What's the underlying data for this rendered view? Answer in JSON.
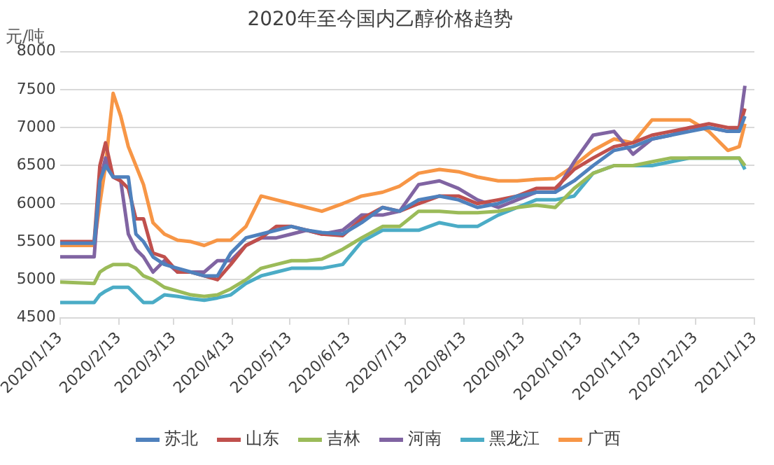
{
  "chart_data": {
    "type": "line",
    "title": "2020年至今国内乙醇价格趋势",
    "ylabel": "元/吨",
    "x": [
      "2020-01-13",
      "2020-01-31",
      "2020-02-03",
      "2020-02-06",
      "2020-02-10",
      "2020-02-14",
      "2020-02-18",
      "2020-02-22",
      "2020-02-26",
      "2020-03-02",
      "2020-03-08",
      "2020-03-15",
      "2020-03-22",
      "2020-03-29",
      "2020-04-05",
      "2020-04-12",
      "2020-04-20",
      "2020-04-28",
      "2020-05-06",
      "2020-05-14",
      "2020-05-22",
      "2020-05-30",
      "2020-06-10",
      "2020-06-20",
      "2020-07-01",
      "2020-07-10",
      "2020-07-20",
      "2020-07-31",
      "2020-08-10",
      "2020-08-20",
      "2020-08-31",
      "2020-09-10",
      "2020-09-20",
      "2020-09-30",
      "2020-10-10",
      "2020-10-20",
      "2020-10-31",
      "2020-11-10",
      "2020-11-20",
      "2020-11-30",
      "2020-12-10",
      "2020-12-20",
      "2020-12-30",
      "2021-01-05",
      "2021-01-08"
    ],
    "series": [
      {
        "name": "苏北",
        "color": "#4f81bd",
        "values": [
          5480,
          5480,
          6300,
          6500,
          6350,
          6350,
          6350,
          5600,
          5500,
          5300,
          5200,
          5150,
          5100,
          5050,
          5050,
          5350,
          5550,
          5600,
          5650,
          5700,
          5650,
          5620,
          5600,
          5750,
          5950,
          5900,
          6050,
          6100,
          6050,
          5950,
          6000,
          6100,
          6150,
          6150,
          6300,
          6500,
          6700,
          6750,
          6850,
          6900,
          6950,
          7000,
          6950,
          6950,
          7150
        ]
      },
      {
        "name": "山东",
        "color": "#c0504d",
        "values": [
          5500,
          5500,
          6500,
          6800,
          6350,
          6300,
          6200,
          5800,
          5800,
          5350,
          5300,
          5100,
          5100,
          5050,
          5000,
          5200,
          5450,
          5550,
          5700,
          5700,
          5650,
          5600,
          5580,
          5800,
          5950,
          5900,
          6000,
          6100,
          6100,
          6000,
          6050,
          6100,
          6200,
          6200,
          6450,
          6600,
          6750,
          6800,
          6900,
          6950,
          7000,
          7050,
          7000,
          7000,
          7250
        ]
      },
      {
        "name": "吉林",
        "color": "#9bbb59",
        "values": [
          4970,
          4950,
          5100,
          5150,
          5200,
          5200,
          5200,
          5150,
          5050,
          5000,
          4900,
          4850,
          4800,
          4780,
          4800,
          4880,
          5000,
          5150,
          5200,
          5250,
          5250,
          5270,
          5400,
          5550,
          5700,
          5700,
          5900,
          5900,
          5880,
          5880,
          5900,
          5950,
          5980,
          5950,
          6200,
          6400,
          6500,
          6500,
          6550,
          6600,
          6600,
          6600,
          6600,
          6600,
          6500
        ]
      },
      {
        "name": "河南",
        "color": "#8064a2",
        "values": [
          5300,
          5300,
          6300,
          6600,
          6350,
          6300,
          5600,
          5400,
          5300,
          5100,
          5250,
          5100,
          5100,
          5100,
          5250,
          5250,
          5450,
          5550,
          5550,
          5600,
          5650,
          5600,
          5650,
          5850,
          5850,
          5900,
          6250,
          6300,
          6200,
          6050,
          5950,
          6050,
          6150,
          6150,
          6550,
          6900,
          6950,
          6650,
          6850,
          6900,
          7000,
          7000,
          6950,
          7000,
          7550
        ]
      },
      {
        "name": "黑龙江",
        "color": "#4bacc6",
        "values": [
          4700,
          4700,
          4800,
          4850,
          4900,
          4900,
          4900,
          4800,
          4700,
          4700,
          4800,
          4780,
          4750,
          4730,
          4760,
          4800,
          4950,
          5050,
          5100,
          5150,
          5150,
          5150,
          5200,
          5500,
          5650,
          5650,
          5650,
          5750,
          5700,
          5700,
          5850,
          5950,
          6050,
          6050,
          6100,
          6400,
          6500,
          6500,
          6500,
          6550,
          6600,
          6600,
          6600,
          6600,
          6450
        ]
      },
      {
        "name": "广西",
        "color": "#f79646",
        "values": [
          5450,
          5450,
          6000,
          6500,
          7450,
          7150,
          6750,
          6500,
          6250,
          5750,
          5600,
          5520,
          5500,
          5450,
          5520,
          5520,
          5700,
          6100,
          6050,
          6000,
          5950,
          5900,
          6000,
          6100,
          6150,
          6230,
          6400,
          6450,
          6420,
          6350,
          6300,
          6300,
          6320,
          6330,
          6500,
          6700,
          6850,
          6800,
          7100,
          7100,
          7100,
          6950,
          6700,
          6750,
          7050
        ]
      }
    ],
    "xlim": [
      "2020-01-13",
      "2021-01-13"
    ],
    "xticks": [
      {
        "value": "2020-01-13",
        "label": "2020/1/13"
      },
      {
        "value": "2020-02-13",
        "label": "2020/2/13"
      },
      {
        "value": "2020-03-13",
        "label": "2020/3/13"
      },
      {
        "value": "2020-04-13",
        "label": "2020/4/13"
      },
      {
        "value": "2020-05-13",
        "label": "2020/5/13"
      },
      {
        "value": "2020-06-13",
        "label": "2020/6/13"
      },
      {
        "value": "2020-07-13",
        "label": "2020/7/13"
      },
      {
        "value": "2020-08-13",
        "label": "2020/8/13"
      },
      {
        "value": "2020-09-13",
        "label": "2020/9/13"
      },
      {
        "value": "2020-10-13",
        "label": "2020/10/13"
      },
      {
        "value": "2020-11-13",
        "label": "2020/11/13"
      },
      {
        "value": "2020-12-13",
        "label": "2020/12/13"
      },
      {
        "value": "2021-01-13",
        "label": "2021/1/13"
      }
    ],
    "ylim": [
      4500,
      8000
    ],
    "yticks": [
      4500,
      5000,
      5500,
      6000,
      6500,
      7000,
      7500,
      8000
    ],
    "grid": "y",
    "legend": "bottom",
    "marker": "none",
    "line_style": "solid"
  }
}
